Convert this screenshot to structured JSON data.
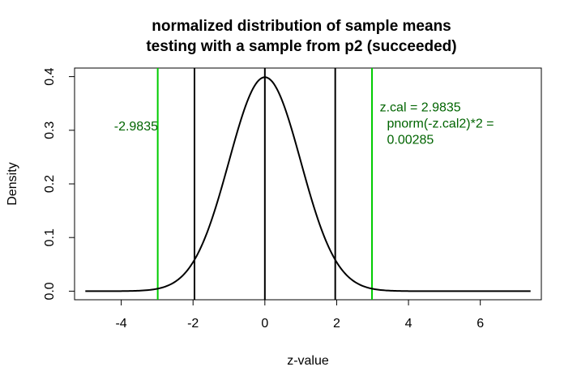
{
  "chart_data": {
    "type": "line",
    "title_line1": "normalized distribution of sample means",
    "title_line2": "testing with a sample from p2 (succeeded)",
    "xlabel": "z-value",
    "ylabel": "Density",
    "xlim": [
      -5.3,
      7.7
    ],
    "ylim": [
      -0.016,
      0.416
    ],
    "x_ticks": [
      -4,
      -2,
      0,
      2,
      4,
      6
    ],
    "x_tick_labels": [
      "-4",
      "-2",
      "0",
      "2",
      "4",
      "6"
    ],
    "y_ticks": [
      0.0,
      0.1,
      0.2,
      0.3,
      0.4
    ],
    "y_tick_labels": [
      "0.0",
      "0.1",
      "0.2",
      "0.3",
      "0.4"
    ],
    "curve": {
      "name": "standard normal density",
      "x_range": [
        -5,
        7.4
      ],
      "mean": 0,
      "sd": 1,
      "color": "#000000"
    },
    "vlines": [
      {
        "x": -1.96,
        "color": "#000000"
      },
      {
        "x": 0,
        "color": "#000000"
      },
      {
        "x": 1.96,
        "color": "#000000"
      },
      {
        "x": -2.9835,
        "color": "#00CC00"
      },
      {
        "x": 2.9835,
        "color": "#00CC00"
      }
    ],
    "annotations": [
      {
        "text": "-2.9835",
        "x": -4.2,
        "y": 0.3
      },
      {
        "text": "z.cal = 2.9835",
        "x": 3.2,
        "y": 0.335
      },
      {
        "text": "pnorm(-z.cal2)*2 =",
        "x": 3.4,
        "y": 0.305
      },
      {
        "text": "0.00285",
        "x": 3.4,
        "y": 0.275
      }
    ],
    "grid": false,
    "annotation_color": "#006400"
  }
}
